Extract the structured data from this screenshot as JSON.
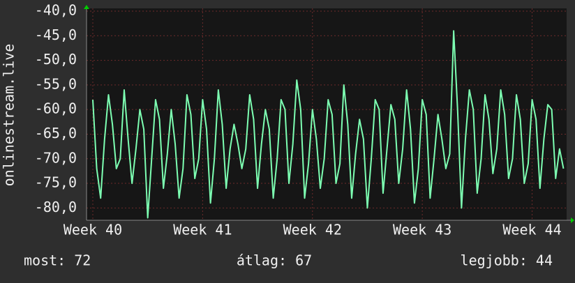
{
  "chart_data": {
    "type": "line",
    "y_label": "onlinestream.live",
    "color": "#7dffb2",
    "grid": true,
    "ylim": [
      -82.5,
      -40
    ],
    "yticks": [
      {
        "value": -40,
        "label": "-40,0"
      },
      {
        "value": -45,
        "label": "-45,0"
      },
      {
        "value": -50,
        "label": "-50,0"
      },
      {
        "value": -55,
        "label": "-55,0"
      },
      {
        "value": -60,
        "label": "-60,0"
      },
      {
        "value": -65,
        "label": "-65,0"
      },
      {
        "value": -70,
        "label": "-70,0"
      },
      {
        "value": -75,
        "label": "-75,0"
      },
      {
        "value": -80,
        "label": "-80,0"
      }
    ],
    "xlim": [
      -0.4,
      30.2
    ],
    "xticks": [
      {
        "value": 0,
        "label": "Week 40"
      },
      {
        "value": 7,
        "label": "Week 41"
      },
      {
        "value": 14,
        "label": "Week 42"
      },
      {
        "value": 21,
        "label": "Week 43"
      },
      {
        "value": 28,
        "label": "Week 44"
      }
    ],
    "x": [
      0,
      0.25,
      0.5,
      0.75,
      1,
      1.25,
      1.5,
      1.75,
      2,
      2.25,
      2.5,
      2.75,
      3,
      3.25,
      3.5,
      3.75,
      4,
      4.25,
      4.5,
      4.75,
      5,
      5.25,
      5.5,
      5.75,
      6,
      6.25,
      6.5,
      6.75,
      7,
      7.25,
      7.5,
      7.75,
      8,
      8.25,
      8.5,
      8.75,
      9,
      9.25,
      9.5,
      9.75,
      10,
      10.25,
      10.5,
      10.75,
      11,
      11.25,
      11.5,
      11.75,
      12,
      12.25,
      12.5,
      12.75,
      13,
      13.25,
      13.5,
      13.75,
      14,
      14.25,
      14.5,
      14.75,
      15,
      15.25,
      15.5,
      15.75,
      16,
      16.25,
      16.5,
      16.75,
      17,
      17.25,
      17.5,
      17.75,
      18,
      18.25,
      18.5,
      18.75,
      19,
      19.25,
      19.5,
      19.75,
      20,
      20.25,
      20.5,
      20.75,
      21,
      21.25,
      21.5,
      21.75,
      22,
      22.25,
      22.5,
      22.75,
      23,
      23.25,
      23.5,
      23.75,
      24,
      24.25,
      24.5,
      24.75,
      25,
      25.25,
      25.5,
      25.75,
      26,
      26.25,
      26.5,
      26.75,
      27,
      27.25,
      27.5,
      27.75,
      28,
      28.25,
      28.5,
      28.75,
      29,
      29.25,
      29.5,
      29.75,
      30
    ],
    "values": [
      -58,
      -72,
      -78,
      -66,
      -57,
      -63,
      -72,
      -70,
      -56,
      -66,
      -75,
      -68,
      -60,
      -64,
      -82,
      -70,
      -58,
      -62,
      -76,
      -69,
      -60,
      -67,
      -78,
      -72,
      -57,
      -61,
      -74,
      -70,
      -58,
      -64,
      -79,
      -70,
      -56,
      -63,
      -76,
      -68,
      -63,
      -67,
      -72,
      -68,
      -57,
      -62,
      -76,
      -67,
      -60,
      -64,
      -78,
      -70,
      -58,
      -60,
      -75,
      -67,
      -54,
      -60,
      -78,
      -71,
      -60,
      -66,
      -76,
      -70,
      -58,
      -61,
      -75,
      -71,
      -55,
      -63,
      -78,
      -69,
      -62,
      -66,
      -80,
      -70,
      -58,
      -60,
      -77,
      -68,
      -59,
      -62,
      -75,
      -68,
      -56,
      -64,
      -79,
      -72,
      -58,
      -61,
      -78,
      -70,
      -61,
      -66,
      -72,
      -69,
      -44,
      -60,
      -80,
      -66,
      -56,
      -60,
      -77,
      -70,
      -57,
      -62,
      -73,
      -68,
      -56,
      -61,
      -74,
      -70,
      -57,
      -62,
      -75,
      -71,
      -58,
      -62,
      -76,
      -66,
      -59,
      -60,
      -74,
      -68,
      -72
    ],
    "annotations": [
      "most: 72",
      "átlag: 67",
      "legjobb: 44"
    ]
  }
}
